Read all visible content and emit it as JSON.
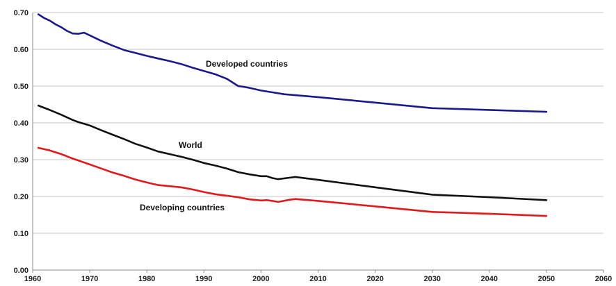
{
  "chart_data": {
    "type": "line",
    "title": "",
    "xlabel": "",
    "ylabel": "",
    "xlim": [
      1960,
      2060
    ],
    "ylim": [
      0.0,
      0.7
    ],
    "x_ticks": [
      1960,
      1970,
      1980,
      1990,
      2000,
      2010,
      2020,
      2030,
      2040,
      2050,
      2060
    ],
    "y_ticks": [
      "0.00",
      "0.10",
      "0.20",
      "0.30",
      "0.40",
      "0.50",
      "0.60",
      "0.70"
    ],
    "grid": "horizontal",
    "legend": "inline labels",
    "series": [
      {
        "name": "Developed countries",
        "color": "#1a1a8c",
        "points": [
          [
            1961,
            0.695
          ],
          [
            1962,
            0.685
          ],
          [
            1963,
            0.678
          ],
          [
            1964,
            0.668
          ],
          [
            1965,
            0.66
          ],
          [
            1966,
            0.65
          ],
          [
            1967,
            0.643
          ],
          [
            1968,
            0.642
          ],
          [
            1969,
            0.645
          ],
          [
            1970,
            0.638
          ],
          [
            1972,
            0.623
          ],
          [
            1974,
            0.61
          ],
          [
            1976,
            0.598
          ],
          [
            1978,
            0.59
          ],
          [
            1980,
            0.582
          ],
          [
            1982,
            0.575
          ],
          [
            1984,
            0.568
          ],
          [
            1986,
            0.56
          ],
          [
            1988,
            0.55
          ],
          [
            1990,
            0.541
          ],
          [
            1992,
            0.532
          ],
          [
            1994,
            0.52
          ],
          [
            1996,
            0.5
          ],
          [
            1997,
            0.498
          ],
          [
            1998,
            0.495
          ],
          [
            2000,
            0.488
          ],
          [
            2002,
            0.483
          ],
          [
            2004,
            0.478
          ],
          [
            2010,
            0.47
          ],
          [
            2020,
            0.455
          ],
          [
            2030,
            0.44
          ],
          [
            2040,
            0.435
          ],
          [
            2050,
            0.43
          ]
        ]
      },
      {
        "name": "World",
        "color": "#111111",
        "points": [
          [
            1961,
            0.447
          ],
          [
            1963,
            0.435
          ],
          [
            1965,
            0.422
          ],
          [
            1967,
            0.408
          ],
          [
            1968,
            0.402
          ],
          [
            1970,
            0.393
          ],
          [
            1972,
            0.38
          ],
          [
            1974,
            0.368
          ],
          [
            1976,
            0.356
          ],
          [
            1978,
            0.343
          ],
          [
            1980,
            0.333
          ],
          [
            1982,
            0.322
          ],
          [
            1984,
            0.315
          ],
          [
            1986,
            0.308
          ],
          [
            1988,
            0.3
          ],
          [
            1990,
            0.291
          ],
          [
            1992,
            0.284
          ],
          [
            1994,
            0.276
          ],
          [
            1996,
            0.266
          ],
          [
            1998,
            0.26
          ],
          [
            2000,
            0.255
          ],
          [
            2001,
            0.255
          ],
          [
            2002,
            0.25
          ],
          [
            2003,
            0.247
          ],
          [
            2005,
            0.251
          ],
          [
            2006,
            0.253
          ],
          [
            2010,
            0.245
          ],
          [
            2020,
            0.225
          ],
          [
            2030,
            0.205
          ],
          [
            2040,
            0.198
          ],
          [
            2050,
            0.19
          ]
        ]
      },
      {
        "name": "Developing countries",
        "color": "#e0191c",
        "points": [
          [
            1961,
            0.332
          ],
          [
            1963,
            0.325
          ],
          [
            1965,
            0.315
          ],
          [
            1967,
            0.303
          ],
          [
            1970,
            0.287
          ],
          [
            1972,
            0.276
          ],
          [
            1974,
            0.265
          ],
          [
            1976,
            0.256
          ],
          [
            1978,
            0.246
          ],
          [
            1980,
            0.238
          ],
          [
            1982,
            0.231
          ],
          [
            1984,
            0.228
          ],
          [
            1986,
            0.225
          ],
          [
            1988,
            0.219
          ],
          [
            1990,
            0.212
          ],
          [
            1992,
            0.206
          ],
          [
            1994,
            0.202
          ],
          [
            1996,
            0.198
          ],
          [
            1998,
            0.192
          ],
          [
            2000,
            0.189
          ],
          [
            2001,
            0.19
          ],
          [
            2002,
            0.188
          ],
          [
            2003,
            0.185
          ],
          [
            2005,
            0.191
          ],
          [
            2006,
            0.193
          ],
          [
            2010,
            0.188
          ],
          [
            2020,
            0.173
          ],
          [
            2030,
            0.158
          ],
          [
            2040,
            0.153
          ],
          [
            2050,
            0.147
          ]
        ]
      }
    ]
  }
}
